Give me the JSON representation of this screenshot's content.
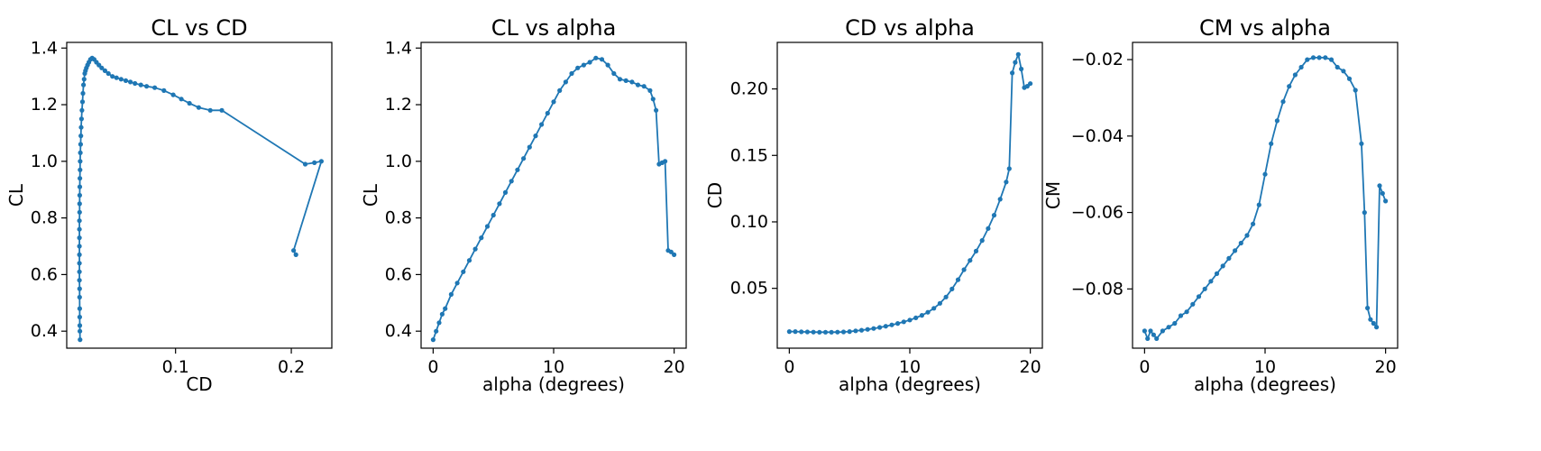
{
  "figure": {
    "line_color": "#1f77b4",
    "background": "#ffffff"
  },
  "chart_data": [
    {
      "type": "line",
      "title": "CL vs CD",
      "xlabel": "CD",
      "ylabel": "CL",
      "xlim": [
        0.006,
        0.235
      ],
      "ylim": [
        0.34,
        1.42
      ],
      "xticks": [
        0.1,
        0.2
      ],
      "xtick_labels": [
        "0.1",
        "0.2"
      ],
      "yticks": [
        0.4,
        0.6,
        0.8,
        1.0,
        1.2,
        1.4
      ],
      "ytick_labels": [
        "0.4",
        "0.6",
        "0.8",
        "1.0",
        "1.2",
        "1.4"
      ],
      "markers": true,
      "grid": false,
      "x": [
        0.0175,
        0.0174,
        0.0173,
        0.0172,
        0.0172,
        0.0171,
        0.0171,
        0.017,
        0.017,
        0.017,
        0.017,
        0.017,
        0.017,
        0.017,
        0.017,
        0.0171,
        0.0171,
        0.0172,
        0.0173,
        0.0174,
        0.0175,
        0.0176,
        0.0178,
        0.018,
        0.0182,
        0.0185,
        0.0188,
        0.0192,
        0.0196,
        0.02,
        0.0205,
        0.021,
        0.0216,
        0.0222,
        0.023,
        0.024,
        0.0252,
        0.0265,
        0.028,
        0.0297,
        0.0316,
        0.0338,
        0.0362,
        0.039,
        0.042,
        0.0455,
        0.049,
        0.053,
        0.057,
        0.061,
        0.065,
        0.07,
        0.075,
        0.082,
        0.09,
        0.098,
        0.105,
        0.112,
        0.12,
        0.13,
        0.14,
        0.212,
        0.22,
        0.226,
        0.202,
        0.204
      ],
      "y": [
        0.37,
        0.4,
        0.42,
        0.45,
        0.48,
        0.52,
        0.55,
        0.58,
        0.61,
        0.64,
        0.67,
        0.7,
        0.73,
        0.76,
        0.79,
        0.82,
        0.85,
        0.88,
        0.91,
        0.94,
        0.97,
        1.0,
        1.03,
        1.06,
        1.09,
        1.12,
        1.15,
        1.18,
        1.21,
        1.24,
        1.27,
        1.29,
        1.31,
        1.32,
        1.33,
        1.34,
        1.35,
        1.36,
        1.365,
        1.36,
        1.35,
        1.34,
        1.33,
        1.32,
        1.31,
        1.3,
        1.295,
        1.29,
        1.285,
        1.28,
        1.275,
        1.27,
        1.265,
        1.26,
        1.25,
        1.235,
        1.22,
        1.205,
        1.19,
        1.18,
        1.18,
        0.99,
        0.995,
        1.0,
        0.685,
        0.67
      ]
    },
    {
      "type": "line",
      "title": "CL vs alpha",
      "xlabel": "alpha (degrees)",
      "ylabel": "CL",
      "xlim": [
        -1.0,
        21.0
      ],
      "ylim": [
        0.34,
        1.42
      ],
      "xticks": [
        0,
        10,
        20
      ],
      "xtick_labels": [
        "0",
        "10",
        "20"
      ],
      "yticks": [
        0.4,
        0.6,
        0.8,
        1.0,
        1.2,
        1.4
      ],
      "ytick_labels": [
        "0.4",
        "0.6",
        "0.8",
        "1.0",
        "1.2",
        "1.4"
      ],
      "markers": true,
      "grid": false,
      "x": [
        0.0,
        0.25,
        0.5,
        0.75,
        1.0,
        1.5,
        2.0,
        2.5,
        3.0,
        3.5,
        4.0,
        4.5,
        5.0,
        5.5,
        6.0,
        6.5,
        7.0,
        7.5,
        8.0,
        8.5,
        9.0,
        9.5,
        10.0,
        10.5,
        11.0,
        11.5,
        12.0,
        12.5,
        13.0,
        13.5,
        14.0,
        14.5,
        15.0,
        15.5,
        16.0,
        16.5,
        17.0,
        17.5,
        18.0,
        18.25,
        18.5,
        18.75,
        19.0,
        19.25,
        19.5,
        19.75,
        20.0
      ],
      "y": [
        0.37,
        0.4,
        0.43,
        0.46,
        0.48,
        0.53,
        0.57,
        0.61,
        0.65,
        0.69,
        0.73,
        0.77,
        0.81,
        0.85,
        0.89,
        0.93,
        0.97,
        1.01,
        1.05,
        1.09,
        1.13,
        1.17,
        1.21,
        1.25,
        1.28,
        1.31,
        1.33,
        1.34,
        1.35,
        1.365,
        1.36,
        1.34,
        1.31,
        1.29,
        1.285,
        1.28,
        1.27,
        1.265,
        1.25,
        1.22,
        1.18,
        0.99,
        0.995,
        1.0,
        0.685,
        0.68,
        0.67
      ]
    },
    {
      "type": "line",
      "title": "CD vs alpha",
      "xlabel": "alpha (degrees)",
      "ylabel": "CD",
      "xlim": [
        -1.0,
        21.0
      ],
      "ylim": [
        0.005,
        0.235
      ],
      "xticks": [
        0,
        10,
        20
      ],
      "xtick_labels": [
        "0",
        "10",
        "20"
      ],
      "yticks": [
        0.05,
        0.1,
        0.15,
        0.2
      ],
      "ytick_labels": [
        "0.05",
        "0.10",
        "0.15",
        "0.20"
      ],
      "markers": true,
      "grid": false,
      "x": [
        0.0,
        0.5,
        1.0,
        1.5,
        2.0,
        2.5,
        3.0,
        3.5,
        4.0,
        4.5,
        5.0,
        5.5,
        6.0,
        6.5,
        7.0,
        7.5,
        8.0,
        8.5,
        9.0,
        9.5,
        10.0,
        10.5,
        11.0,
        11.5,
        12.0,
        12.5,
        13.0,
        13.5,
        14.0,
        14.5,
        15.0,
        15.5,
        16.0,
        16.5,
        17.0,
        17.5,
        18.0,
        18.25,
        18.5,
        18.75,
        19.0,
        19.25,
        19.5,
        19.75,
        20.0
      ],
      "y": [
        0.0175,
        0.0175,
        0.0173,
        0.0172,
        0.0171,
        0.017,
        0.017,
        0.017,
        0.0171,
        0.0172,
        0.0175,
        0.018,
        0.0185,
        0.0191,
        0.0198,
        0.0206,
        0.0215,
        0.0225,
        0.0236,
        0.0248,
        0.0262,
        0.0278,
        0.0297,
        0.032,
        0.035,
        0.0387,
        0.0435,
        0.0495,
        0.0565,
        0.064,
        0.071,
        0.078,
        0.086,
        0.095,
        0.105,
        0.117,
        0.13,
        0.14,
        0.212,
        0.22,
        0.226,
        0.215,
        0.201,
        0.202,
        0.204
      ]
    },
    {
      "type": "line",
      "title": "CM vs alpha",
      "xlabel": "alpha (degrees)",
      "ylabel": "CM",
      "xlim": [
        -1.0,
        21.0
      ],
      "ylim": [
        -0.0955,
        -0.0155
      ],
      "xticks": [
        0,
        10,
        20
      ],
      "xtick_labels": [
        "0",
        "10",
        "20"
      ],
      "yticks": [
        -0.08,
        -0.06,
        -0.04,
        -0.02
      ],
      "ytick_labels": [
        "−0.08",
        "−0.06",
        "−0.04",
        "−0.02"
      ],
      "markers": true,
      "grid": false,
      "x": [
        0.0,
        0.25,
        0.5,
        0.75,
        1.0,
        1.5,
        2.0,
        2.5,
        3.0,
        3.5,
        4.0,
        4.5,
        5.0,
        5.5,
        6.0,
        6.5,
        7.0,
        7.5,
        8.0,
        8.5,
        9.0,
        9.5,
        10.0,
        10.5,
        11.0,
        11.5,
        12.0,
        12.5,
        13.0,
        13.5,
        14.0,
        14.5,
        15.0,
        15.5,
        16.0,
        16.5,
        17.0,
        17.5,
        18.0,
        18.25,
        18.5,
        18.75,
        19.0,
        19.25,
        19.5,
        19.75,
        20.0
      ],
      "y": [
        -0.091,
        -0.093,
        -0.091,
        -0.092,
        -0.093,
        -0.091,
        -0.09,
        -0.089,
        -0.087,
        -0.086,
        -0.084,
        -0.082,
        -0.08,
        -0.078,
        -0.076,
        -0.074,
        -0.072,
        -0.07,
        -0.068,
        -0.066,
        -0.063,
        -0.058,
        -0.05,
        -0.042,
        -0.036,
        -0.031,
        -0.027,
        -0.024,
        -0.022,
        -0.02,
        -0.0195,
        -0.0195,
        -0.0195,
        -0.02,
        -0.022,
        -0.023,
        -0.025,
        -0.028,
        -0.042,
        -0.06,
        -0.085,
        -0.088,
        -0.089,
        -0.09,
        -0.053,
        -0.055,
        -0.057
      ]
    }
  ]
}
